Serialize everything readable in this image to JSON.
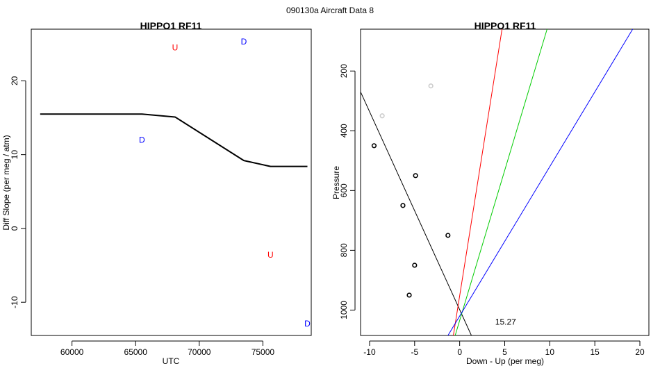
{
  "page_title": "090130a   Aircraft Data 8",
  "chart_data": [
    {
      "type": "line",
      "title": "HIPPO1 RF11",
      "xlabel": "UTC",
      "ylabel": "Diff Slope (per meg / atm)",
      "xlim": [
        56800,
        78800
      ],
      "ylim": [
        -14.5,
        27
      ],
      "xticks": [
        60000,
        65000,
        70000,
        75000
      ],
      "yticks": [
        -10,
        0,
        10,
        20
      ],
      "series": [
        {
          "style": "line",
          "color": "#000000",
          "x": [
            57500,
            65500,
            68100,
            73500,
            75600,
            78500
          ],
          "y": [
            15.5,
            15.5,
            15.1,
            9.2,
            8.4,
            8.4
          ]
        }
      ],
      "annotations": [
        {
          "text": "U",
          "x": 68100,
          "y": 24.5,
          "color": "#ff0000"
        },
        {
          "text": "D",
          "x": 73500,
          "y": 25.3,
          "color": "#0000ff"
        },
        {
          "text": "D",
          "x": 65500,
          "y": 12.0,
          "color": "#0000ff"
        },
        {
          "text": "U",
          "x": 75600,
          "y": -3.6,
          "color": "#ff0000"
        },
        {
          "text": "D",
          "x": 78500,
          "y": -12.9,
          "color": "#0000ff"
        }
      ]
    },
    {
      "type": "scatter",
      "title": "HIPPO1 RF11",
      "xlabel": "Down - Up (per meg)",
      "ylabel": "Pressure",
      "xlim": [
        -11,
        21
      ],
      "ylim": [
        1085,
        60
      ],
      "y_reversed": true,
      "xticks": [
        -10,
        -5,
        0,
        5,
        10,
        15,
        20
      ],
      "yticks": [
        200,
        400,
        600,
        800,
        1000
      ],
      "points": [
        {
          "x": -3.2,
          "y": 250,
          "color": "#cccccc"
        },
        {
          "x": -8.6,
          "y": 350,
          "color": "#cccccc"
        },
        {
          "x": -9.5,
          "y": 450,
          "color": "#000000"
        },
        {
          "x": -4.9,
          "y": 550,
          "color": "#000000"
        },
        {
          "x": -6.3,
          "y": 650,
          "color": "#000000"
        },
        {
          "x": -1.3,
          "y": 750,
          "color": "#000000"
        },
        {
          "x": -5.0,
          "y": 850,
          "color": "#000000"
        },
        {
          "x": -5.6,
          "y": 950,
          "color": "#000000"
        }
      ],
      "lines": [
        {
          "color": "#000000",
          "x": [
            -11,
            1.3
          ],
          "y": [
            270,
            1085
          ]
        },
        {
          "color": "#ff0000",
          "x": [
            -0.7,
            4.7
          ],
          "y": [
            1085,
            60
          ]
        },
        {
          "color": "#00cc00",
          "x": [
            -0.5,
            9.7
          ],
          "y": [
            1085,
            60
          ]
        },
        {
          "color": "#0000ff",
          "x": [
            -1.3,
            19.2
          ],
          "y": [
            1085,
            60
          ]
        }
      ],
      "annotations": [
        {
          "text": "15.27",
          "x": 5.1,
          "y": 1040,
          "color": "#000000"
        }
      ]
    }
  ]
}
